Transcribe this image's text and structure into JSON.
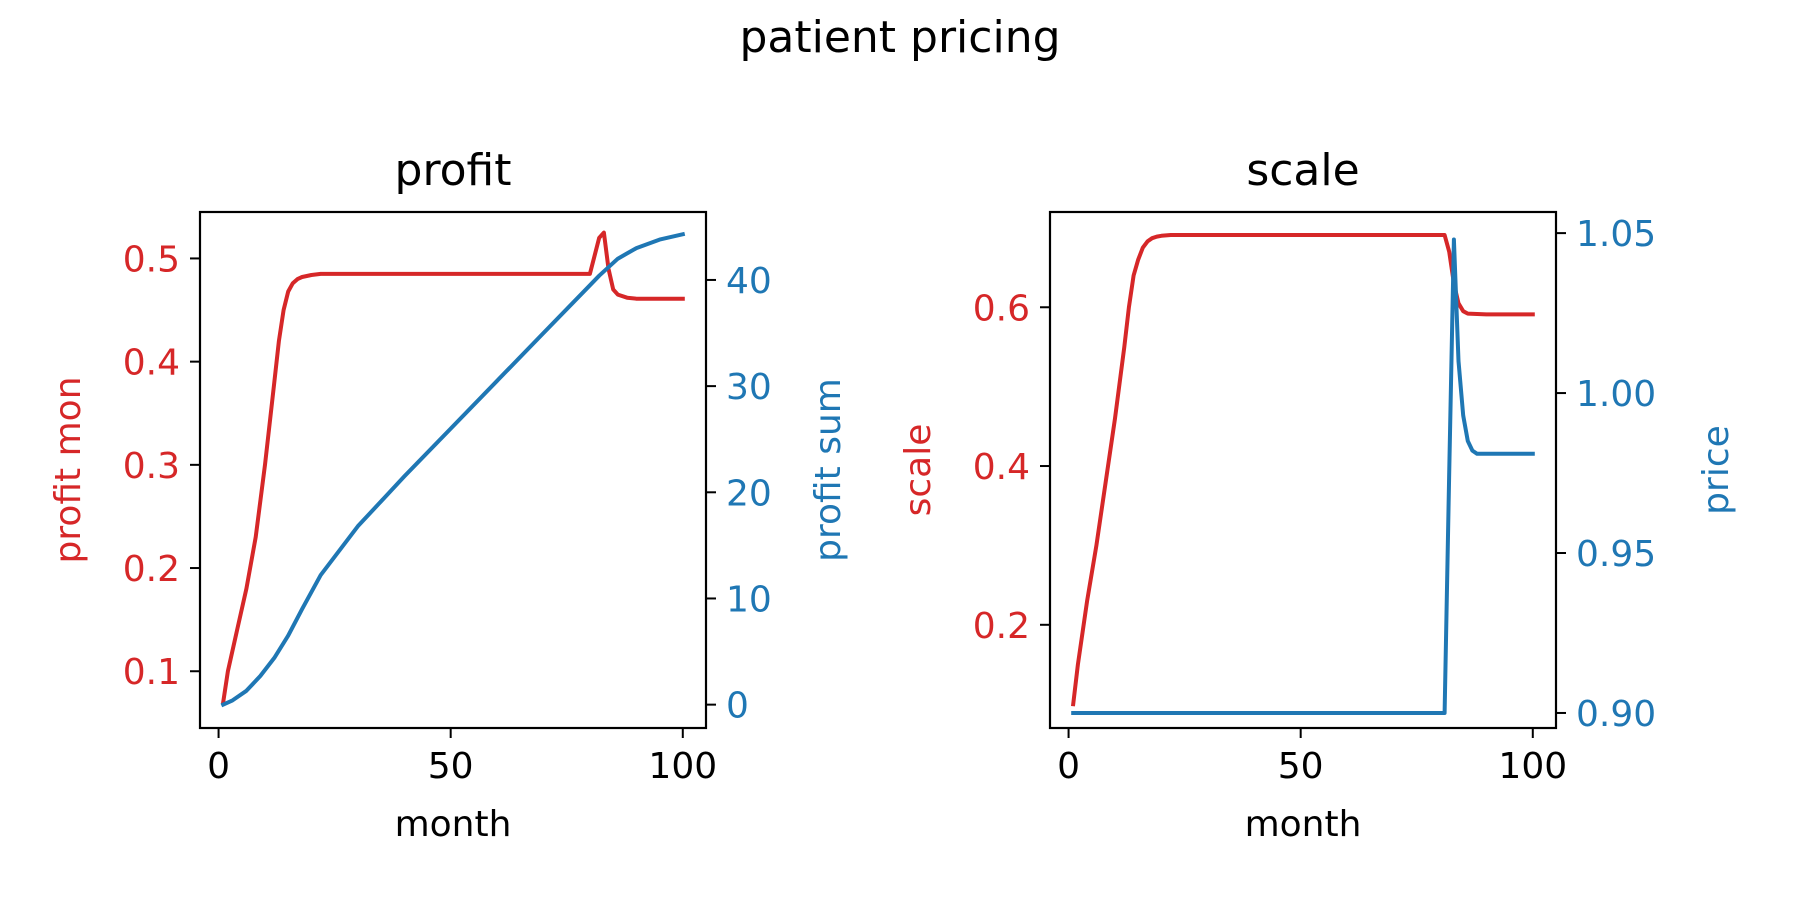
{
  "figure": {
    "title": "patient pricing",
    "colors": {
      "left_axis": "#d62728",
      "right_axis": "#1f77b4",
      "frame": "#000000"
    }
  },
  "chart_data": [
    {
      "type": "line",
      "title": "profit",
      "xlabel": "month",
      "ylabel": "profit mon",
      "ylabel_right": "profit sum",
      "xlim": [
        -4,
        105
      ],
      "ylim": [
        0.045,
        0.545
      ],
      "ylim_right": [
        -2.2,
        46.4
      ],
      "xticks": [
        0,
        50,
        100
      ],
      "yticks": [
        0.1,
        0.2,
        0.3,
        0.4,
        0.5
      ],
      "yticks_right": [
        0,
        10,
        20,
        30,
        40
      ],
      "grid": false,
      "series": [
        {
          "axis": "left",
          "color": "#d62728",
          "x": [
            1,
            2,
            4,
            6,
            8,
            10,
            12,
            13,
            14,
            15,
            16,
            17,
            18,
            19,
            20,
            22,
            25,
            30,
            40,
            50,
            60,
            70,
            80,
            82,
            83,
            84,
            85,
            86,
            88,
            90,
            95,
            100
          ],
          "y": [
            0.07,
            0.1,
            0.14,
            0.18,
            0.23,
            0.3,
            0.38,
            0.42,
            0.45,
            0.468,
            0.476,
            0.48,
            0.482,
            0.483,
            0.484,
            0.485,
            0.485,
            0.485,
            0.485,
            0.485,
            0.485,
            0.485,
            0.485,
            0.52,
            0.525,
            0.49,
            0.47,
            0.465,
            0.462,
            0.461,
            0.461,
            0.461
          ]
        },
        {
          "axis": "right",
          "color": "#1f77b4",
          "x": [
            1,
            3,
            6,
            9,
            12,
            15,
            18,
            22,
            30,
            40,
            50,
            60,
            70,
            80,
            82,
            84,
            86,
            88,
            90,
            95,
            100
          ],
          "y": [
            0,
            0.4,
            1.3,
            2.7,
            4.4,
            6.5,
            9.0,
            12.2,
            16.8,
            21.5,
            26.0,
            30.5,
            35.0,
            39.5,
            40.4,
            41.2,
            42.0,
            42.5,
            43.0,
            43.8,
            44.3
          ]
        }
      ]
    },
    {
      "type": "line",
      "title": "scale",
      "xlabel": "month",
      "ylabel": "scale",
      "ylabel_right": "price",
      "xlim": [
        -4,
        105
      ],
      "ylim": [
        0.07,
        0.72
      ],
      "ylim_right": [
        0.8953,
        1.0566
      ],
      "xticks": [
        0,
        50,
        100
      ],
      "yticks": [
        0.2,
        0.4,
        0.6
      ],
      "yticks_right": [
        0.9,
        0.95,
        1.0,
        1.05
      ],
      "grid": false,
      "series": [
        {
          "axis": "left",
          "color": "#d62728",
          "x": [
            1,
            2,
            4,
            6,
            8,
            10,
            12,
            13,
            14,
            15,
            16,
            17,
            18,
            19,
            20,
            22,
            25,
            30,
            40,
            50,
            60,
            70,
            80,
            81,
            82,
            83,
            84,
            85,
            86,
            90,
            95,
            100
          ],
          "y": [
            0.1,
            0.15,
            0.23,
            0.3,
            0.38,
            0.46,
            0.55,
            0.6,
            0.64,
            0.66,
            0.675,
            0.683,
            0.687,
            0.689,
            0.69,
            0.691,
            0.691,
            0.691,
            0.691,
            0.691,
            0.691,
            0.691,
            0.691,
            0.691,
            0.67,
            0.63,
            0.605,
            0.595,
            0.592,
            0.591,
            0.591,
            0.591
          ]
        },
        {
          "axis": "right",
          "color": "#1f77b4",
          "x": [
            1,
            20,
            40,
            60,
            80,
            81,
            82,
            83,
            84,
            85,
            86,
            87,
            88,
            90,
            95,
            100
          ],
          "y": [
            0.9,
            0.9,
            0.9,
            0.9,
            0.9,
            0.9,
            0.975,
            1.048,
            1.01,
            0.993,
            0.985,
            0.982,
            0.981,
            0.981,
            0.981,
            0.981
          ]
        }
      ]
    }
  ]
}
